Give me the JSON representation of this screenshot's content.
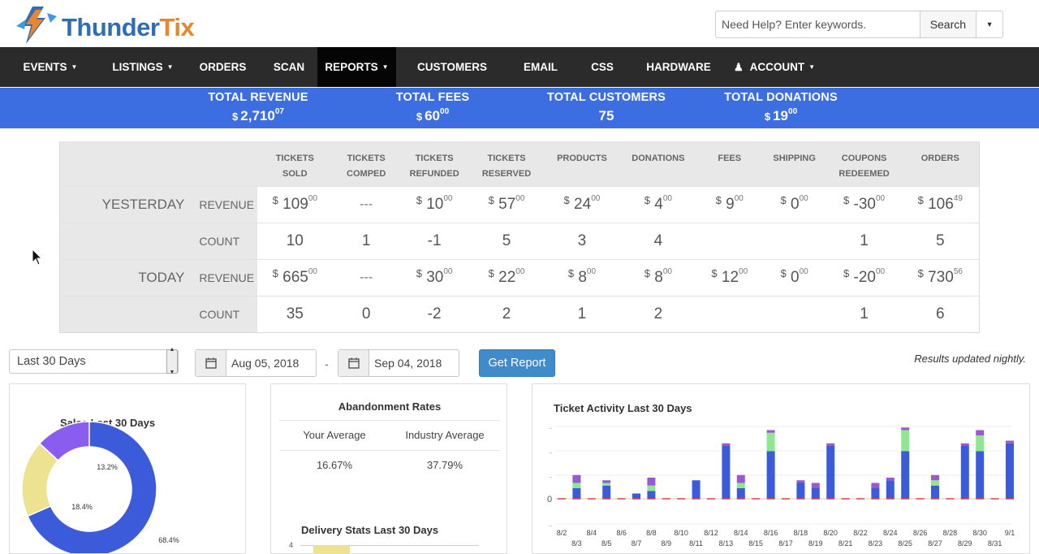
{
  "brand": {
    "name_part1": "Thunder",
    "name_part2": "Tix"
  },
  "help": {
    "placeholder": "Need Help? Enter keywords.",
    "search_label": "Search"
  },
  "nav": [
    {
      "label": "EVENTS",
      "caret": true
    },
    {
      "label": "LISTINGS",
      "caret": true
    },
    {
      "label": "ORDERS",
      "caret": false
    },
    {
      "label": "SCAN",
      "caret": false
    },
    {
      "label": "REPORTS",
      "caret": true,
      "active": true
    },
    {
      "label": "CUSTOMERS",
      "caret": false
    },
    {
      "label": "EMAIL",
      "caret": false
    },
    {
      "label": "CSS",
      "caret": false
    },
    {
      "label": "HARDWARE",
      "caret": false
    },
    {
      "label": "ACCOUNT",
      "caret": true,
      "icon": "person-icon"
    }
  ],
  "totals": [
    {
      "label": "TOTAL REVENUE",
      "prefix": "$",
      "value": "2,710",
      "cents": "07"
    },
    {
      "label": "TOTAL FEES",
      "prefix": "$",
      "value": "60",
      "cents": "00"
    },
    {
      "label": "TOTAL CUSTOMERS",
      "prefix": "",
      "value": "75",
      "cents": ""
    },
    {
      "label": "TOTAL DONATIONS",
      "prefix": "$",
      "value": "19",
      "cents": "00"
    }
  ],
  "stats": {
    "columns": [
      [
        "TICKETS",
        "SOLD"
      ],
      [
        "TICKETS",
        "COMPED"
      ],
      [
        "TICKETS",
        "REFUNDED"
      ],
      [
        "TICKETS",
        "RESERVED"
      ],
      [
        "PRODUCTS"
      ],
      [
        "DONATIONS"
      ],
      [
        "FEES"
      ],
      [
        "SHIPPING"
      ],
      [
        "COUPONS",
        "REDEEMED"
      ],
      [
        "ORDERS"
      ]
    ],
    "rows": [
      {
        "period": "YESTERDAY",
        "kind": "REVENUE",
        "cells": [
          {
            "d": "$",
            "v": "109",
            "c": "00"
          },
          {
            "dash": "---"
          },
          {
            "d": "$",
            "v": "10",
            "c": "00"
          },
          {
            "d": "$",
            "v": "57",
            "c": "00"
          },
          {
            "d": "$",
            "v": "24",
            "c": "00"
          },
          {
            "d": "$",
            "v": "4",
            "c": "00"
          },
          {
            "d": "$",
            "v": "9",
            "c": "00"
          },
          {
            "d": "$",
            "v": "0",
            "c": "00"
          },
          {
            "d": "$",
            "v": "-30",
            "c": "00"
          },
          {
            "d": "$",
            "v": "106",
            "c": "49"
          }
        ]
      },
      {
        "period": "",
        "kind": "COUNT",
        "cells": [
          {
            "v": "10"
          },
          {
            "v": "1"
          },
          {
            "v": "-1"
          },
          {
            "v": "5"
          },
          {
            "v": "3"
          },
          {
            "v": "4"
          },
          {
            "v": ""
          },
          {
            "v": ""
          },
          {
            "v": "1"
          },
          {
            "v": "5"
          }
        ]
      },
      {
        "period": "TODAY",
        "kind": "REVENUE",
        "cells": [
          {
            "d": "$",
            "v": "665",
            "c": "00"
          },
          {
            "dash": "---"
          },
          {
            "d": "$",
            "v": "30",
            "c": "00"
          },
          {
            "d": "$",
            "v": "22",
            "c": "00"
          },
          {
            "d": "$",
            "v": "8",
            "c": "00"
          },
          {
            "d": "$",
            "v": "8",
            "c": "00"
          },
          {
            "d": "$",
            "v": "12",
            "c": "00"
          },
          {
            "d": "$",
            "v": "0",
            "c": "00"
          },
          {
            "d": "$",
            "v": "-20",
            "c": "00"
          },
          {
            "d": "$",
            "v": "730",
            "c": "56"
          }
        ]
      },
      {
        "period": "",
        "kind": "COUNT",
        "cells": [
          {
            "v": "35"
          },
          {
            "v": "0"
          },
          {
            "v": "-2"
          },
          {
            "v": "2"
          },
          {
            "v": "1"
          },
          {
            "v": "2"
          },
          {
            "v": ""
          },
          {
            "v": ""
          },
          {
            "v": "1"
          },
          {
            "v": "6"
          }
        ]
      }
    ]
  },
  "controls": {
    "range_select": "Last 30 Days",
    "start_date": "Aug 05, 2018",
    "date_separator": "-",
    "end_date": "Sep 04, 2018",
    "get_report_label": "Get Report",
    "results_note": "Results updated nightly."
  },
  "abandonment": {
    "title": "Abandonment Rates",
    "headers": [
      "Your Average",
      "Industry Average"
    ],
    "values": [
      "16.67%",
      "37.79%"
    ]
  },
  "delivery": {
    "title": "Delivery Stats Last 30 Days",
    "axis_label": "4"
  },
  "chart_data": [
    {
      "type": "pie",
      "title": "Sales Last 30 Days",
      "slices": [
        {
          "label": "68.4%",
          "value": 68.4,
          "color": "#3b5bdb"
        },
        {
          "label": "18.4%",
          "value": 18.4,
          "color": "#ede28f"
        },
        {
          "label": "13.2%",
          "value": 13.2,
          "color": "#8a5cf0"
        }
      ]
    },
    {
      "type": "bar",
      "title": "Ticket Activity Last 30 Days",
      "categories": [
        "8/2",
        "8/3",
        "8/4",
        "8/5",
        "8/6",
        "8/7",
        "8/8",
        "8/9",
        "8/10",
        "8/11",
        "8/12",
        "8/13",
        "8/14",
        "8/15",
        "8/16",
        "8/17",
        "8/18",
        "8/19",
        "8/20",
        "8/21",
        "8/22",
        "8/23",
        "8/24",
        "8/25",
        "8/26",
        "8/27",
        "8/28",
        "8/29",
        "8/30",
        "8/31",
        "9/1"
      ],
      "ytick_labels": [
        "0"
      ],
      "colors": {
        "sold": "#3b5bdb",
        "comped": "#8fe88f",
        "reserved": "#9b59d0",
        "refunded": "#e04040"
      },
      "series": [
        {
          "key": "sold",
          "values": [
            0,
            4,
            0,
            5,
            0,
            2,
            3,
            0,
            0,
            7,
            0,
            20,
            4,
            0,
            18,
            0,
            6,
            4,
            20,
            0,
            0,
            4,
            7,
            18,
            0,
            5,
            0,
            20,
            18,
            0,
            21
          ]
        },
        {
          "key": "comped",
          "values": [
            0,
            2,
            0,
            1,
            0,
            0,
            2,
            0,
            0,
            0,
            0,
            0,
            2,
            0,
            7,
            0,
            0,
            0,
            0,
            0,
            0,
            0,
            0,
            8,
            0,
            2,
            0,
            0,
            6,
            0,
            0
          ]
        },
        {
          "key": "reserved",
          "values": [
            0,
            3,
            0,
            1,
            0,
            0,
            3,
            0,
            0,
            0,
            0,
            1,
            3,
            0,
            1,
            0,
            1,
            2,
            1,
            0,
            0,
            2,
            1,
            1,
            0,
            2,
            0,
            1,
            2,
            0,
            1
          ]
        },
        {
          "key": "refunded",
          "values": [
            0,
            0,
            0,
            0,
            0,
            0,
            0,
            0,
            0,
            0,
            0,
            0,
            0,
            0,
            0,
            0,
            0,
            0,
            0,
            0,
            0,
            0,
            0,
            0,
            0,
            0,
            0,
            0,
            0,
            0,
            0
          ]
        }
      ]
    }
  ]
}
